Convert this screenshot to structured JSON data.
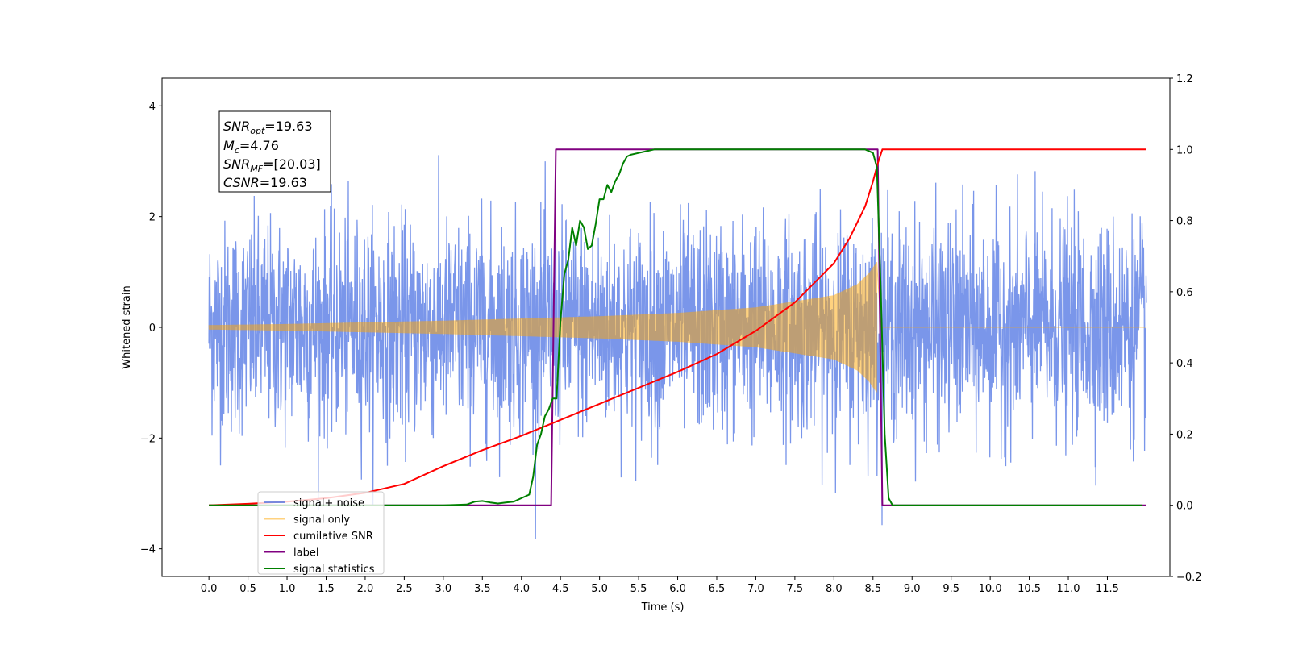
{
  "chart_data": {
    "type": "line",
    "xlabel": "Time (s)",
    "ylabel": "Whitened strain",
    "xlim": [
      -0.6,
      12.3
    ],
    "ylim": [
      -4.5,
      4.5
    ],
    "y2lim": [
      -0.2,
      1.2
    ],
    "x_ticks": [
      0.0,
      0.5,
      1.0,
      1.5,
      2.0,
      2.5,
      3.0,
      3.5,
      4.0,
      4.5,
      5.0,
      5.5,
      6.0,
      6.5,
      7.0,
      7.5,
      8.0,
      8.5,
      9.0,
      9.5,
      10.0,
      10.5,
      11.0,
      11.5
    ],
    "x_tick_labels": [
      "0.0",
      "0.5",
      "1.0",
      "1.5",
      "2.0",
      "2.5",
      "3.0",
      "3.5",
      "4.0",
      "4.5",
      "5.0",
      "5.5",
      "6.0",
      "6.5",
      "7.0",
      "7.5",
      "8.0",
      "8.5",
      "9.0",
      "9.5",
      "10.0",
      "10.5",
      "11.0",
      "11.5"
    ],
    "y_ticks": [
      -4,
      -2,
      0,
      2,
      4
    ],
    "y_tick_labels": [
      "−4",
      "−2",
      "0",
      "2",
      "4"
    ],
    "y2_ticks": [
      -0.2,
      0.0,
      0.2,
      0.4,
      0.6,
      0.8,
      1.0,
      1.2
    ],
    "y2_tick_labels": [
      "−0.2",
      "0.0",
      "0.2",
      "0.4",
      "0.6",
      "0.8",
      "1.0",
      "1.2"
    ],
    "info_box": {
      "snr_opt": "=19.63",
      "mc": "=4.76",
      "snr_mf": "=[20.03]",
      "csnr": "=19.63"
    },
    "legend_position": "lower-left",
    "legend": [
      {
        "label": "signal+ noise",
        "color": "#4169e1",
        "alpha": 0.7
      },
      {
        "label": "signal only",
        "color": "#ffa500",
        "alpha": 0.5
      },
      {
        "label": "cumilative SNR",
        "color": "#ff0000",
        "alpha": 1
      },
      {
        "label": "label",
        "color": "#800080",
        "alpha": 1
      },
      {
        "label": "signal statistics",
        "color": "#008000",
        "alpha": 1
      }
    ],
    "series": [
      {
        "name": "signal+ noise",
        "axis": "left",
        "color": "#4169e1",
        "description": "white noise, std ~0.95, 0 to 12 s",
        "x_range": [
          0.0,
          12.0
        ],
        "noise_std": 0.95
      },
      {
        "name": "signal only",
        "axis": "left",
        "color": "#ffa500",
        "description": "chirp envelope from 0 to 8.55 s",
        "envelope_x": [
          0.0,
          1.0,
          2.0,
          3.0,
          4.0,
          5.0,
          6.0,
          7.0,
          8.0,
          8.3,
          8.45,
          8.55
        ],
        "envelope_y": [
          0.04,
          0.06,
          0.09,
          0.12,
          0.16,
          0.2,
          0.26,
          0.36,
          0.58,
          0.78,
          0.98,
          1.18
        ]
      },
      {
        "name": "cumilative SNR",
        "axis": "right",
        "color": "#ff0000",
        "x": [
          0.0,
          0.5,
          1.0,
          1.5,
          2.0,
          2.5,
          3.0,
          3.5,
          4.0,
          4.5,
          5.0,
          5.5,
          6.0,
          6.5,
          7.0,
          7.5,
          8.0,
          8.2,
          8.4,
          8.5,
          8.56,
          8.62,
          9.0,
          10.0,
          11.0,
          12.0
        ],
        "y": [
          0.0,
          0.004,
          0.01,
          0.02,
          0.035,
          0.06,
          0.11,
          0.155,
          0.195,
          0.24,
          0.285,
          0.33,
          0.375,
          0.425,
          0.49,
          0.57,
          0.68,
          0.75,
          0.84,
          0.91,
          0.96,
          1.0,
          1.0,
          1.0,
          1.0,
          1.0
        ]
      },
      {
        "name": "label",
        "axis": "right",
        "color": "#800080",
        "x": [
          0.0,
          4.38,
          4.44,
          8.56,
          8.62,
          12.0
        ],
        "y": [
          0.0,
          0.0,
          1.0,
          1.0,
          0.0,
          0.0
        ]
      },
      {
        "name": "signal statistics",
        "axis": "right",
        "color": "#008000",
        "x": [
          0.0,
          1.0,
          2.0,
          3.0,
          3.3,
          3.4,
          3.5,
          3.6,
          3.7,
          3.8,
          3.9,
          4.0,
          4.1,
          4.15,
          4.2,
          4.25,
          4.3,
          4.35,
          4.4,
          4.45,
          4.5,
          4.55,
          4.6,
          4.65,
          4.7,
          4.75,
          4.8,
          4.85,
          4.9,
          4.95,
          5.0,
          5.05,
          5.1,
          5.15,
          5.2,
          5.25,
          5.3,
          5.35,
          5.4,
          5.5,
          5.6,
          5.7,
          6.0,
          7.0,
          8.0,
          8.4,
          8.5,
          8.55,
          8.6,
          8.65,
          8.7,
          8.75,
          9.0,
          10.0,
          11.0,
          11.95
        ],
        "y": [
          0.0,
          0.0,
          0.0,
          0.0,
          0.002,
          0.01,
          0.012,
          0.008,
          0.005,
          0.008,
          0.01,
          0.02,
          0.03,
          0.08,
          0.17,
          0.2,
          0.25,
          0.27,
          0.3,
          0.3,
          0.52,
          0.65,
          0.69,
          0.78,
          0.73,
          0.8,
          0.78,
          0.72,
          0.73,
          0.79,
          0.86,
          0.86,
          0.9,
          0.88,
          0.91,
          0.93,
          0.96,
          0.98,
          0.985,
          0.99,
          0.995,
          1.0,
          1.0,
          1.0,
          1.0,
          1.0,
          0.99,
          0.95,
          0.6,
          0.2,
          0.02,
          0.0,
          0.0,
          0.0,
          0.0,
          0.0
        ]
      }
    ]
  }
}
